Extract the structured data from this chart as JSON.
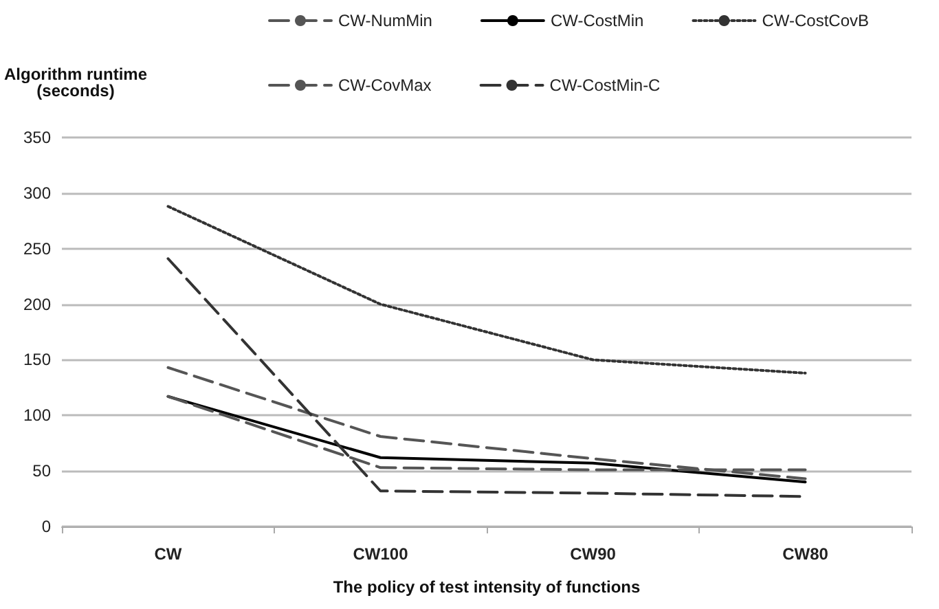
{
  "chart_data": {
    "type": "line",
    "ylabel": "Algorithm runtime\n(seconds)",
    "xlabel": "The policy of test intensity of functions",
    "categories": [
      "CW",
      "CW100",
      "CW90",
      "CW80"
    ],
    "series": [
      {
        "name": "CW-NumMin",
        "color": "#555555",
        "line_style": "dashed",
        "values": [
          143,
          81,
          61,
          43
        ]
      },
      {
        "name": "CW-CostMin",
        "color": "#000000",
        "line_style": "solid",
        "values": [
          117,
          62,
          57,
          40
        ]
      },
      {
        "name": "CW-CostCovB",
        "color": "#333333",
        "line_style": "dotted",
        "values": [
          288,
          200,
          150,
          138
        ]
      },
      {
        "name": "CW-CovMax",
        "color": "#555555",
        "line_style": "dashed",
        "values": [
          117,
          53,
          51,
          51
        ]
      },
      {
        "name": "CW-CostMin-C",
        "color": "#333333",
        "line_style": "dashed",
        "values": [
          241,
          32,
          30,
          27
        ]
      }
    ],
    "ylim": [
      0,
      350
    ],
    "yticks": [
      0,
      50,
      100,
      150,
      200,
      250,
      300,
      350
    ],
    "grid": "y",
    "legend": "top right",
    "marker": "none"
  }
}
